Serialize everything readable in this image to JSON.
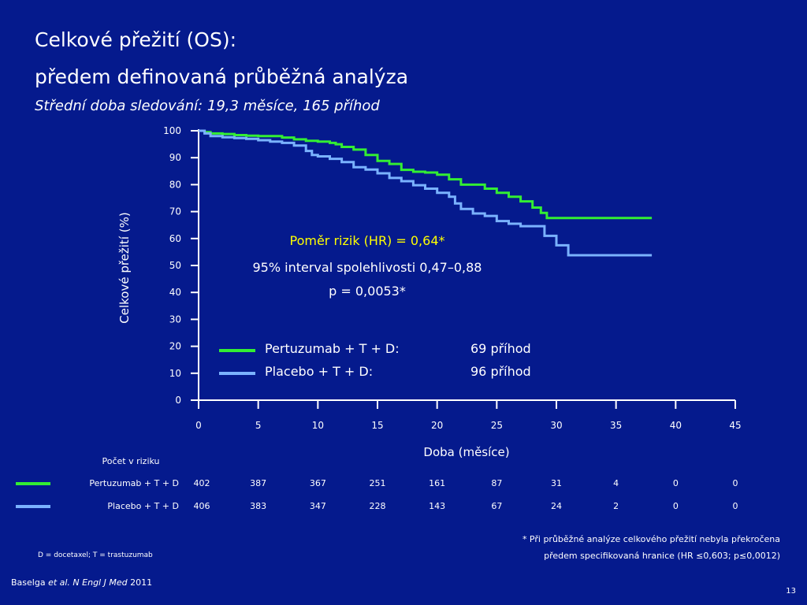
{
  "header": {
    "title_line1": "Celkové přežití (OS):",
    "title_line2": "předem definovaná průběžná analýza",
    "subtitle": "Střední doba sledování: 19,3 měsíce, 165 příhod"
  },
  "colors": {
    "background": "#051a8d",
    "pertuzumab": "#33ee33",
    "placebo": "#7ab2ff",
    "highlight": "#ffff00"
  },
  "annotations": {
    "hr": "Poměr rizik (HR) = 0,64*",
    "ci": "95% interval spolehlivosti 0,47–0,88",
    "p": "p = 0,0053*"
  },
  "legend": [
    {
      "label": "Pertuzumab + T + D:",
      "events": "69 příhod",
      "color": "#33ee33"
    },
    {
      "label": "Placebo + T + D:",
      "events": "96 příhod",
      "color": "#7ab2ff"
    }
  ],
  "chart_data": {
    "type": "line",
    "step": true,
    "xlabel": "Doba (měsíce)",
    "ylabel": "Celkové přežití (%)",
    "xlim": [
      0,
      45
    ],
    "ylim": [
      0,
      100
    ],
    "xticks": [
      "0",
      "5",
      "10",
      "15",
      "20",
      "25",
      "30",
      "35",
      "40",
      "45"
    ],
    "yticks": [
      "0",
      "10",
      "20",
      "30",
      "40",
      "50",
      "60",
      "70",
      "80",
      "90",
      "100"
    ],
    "series": [
      {
        "name": "Pertuzumab + T + D",
        "color": "#33ee33",
        "x": [
          0,
          0.5,
          1,
          2,
          3,
          4,
          5,
          6,
          7,
          8,
          9,
          10,
          11,
          11.5,
          12,
          13,
          14,
          15,
          16,
          17,
          18,
          19,
          20,
          21,
          22,
          23,
          24,
          25,
          26,
          27,
          28,
          28.7,
          29.2,
          35,
          38
        ],
        "y": [
          100,
          99.5,
          99,
          98.8,
          98.4,
          98.2,
          98,
          98,
          97.5,
          96.8,
          96.3,
          96,
          95.5,
          95,
          94,
          93,
          91,
          88.8,
          87.7,
          85.5,
          84.8,
          84.5,
          83.7,
          82,
          80,
          80,
          78.5,
          77,
          75.5,
          73.8,
          71.5,
          69.5,
          67.6,
          67.6,
          67.6
        ]
      },
      {
        "name": "Placebo + T + D",
        "color": "#7ab2ff",
        "x": [
          0,
          0.5,
          1,
          2,
          3,
          4,
          5,
          6,
          7,
          8,
          9,
          9.5,
          10,
          11,
          12,
          13,
          14,
          15,
          16,
          17,
          18,
          19,
          20,
          21,
          21.5,
          22,
          23,
          24,
          25,
          26,
          27,
          28,
          29,
          30,
          31,
          35,
          38
        ],
        "y": [
          100,
          99,
          98,
          97.6,
          97.3,
          97,
          96.5,
          96,
          95.5,
          94.5,
          92.5,
          91,
          90.5,
          89.6,
          88.4,
          86.5,
          85.6,
          84.2,
          82.5,
          81.3,
          79.8,
          78.5,
          77,
          75.5,
          73,
          71,
          69.3,
          68.4,
          66.5,
          65.5,
          64.6,
          64.6,
          61,
          57.5,
          53.8,
          53.8,
          53.8
        ]
      }
    ]
  },
  "risk_table": {
    "title": "Počet v riziku",
    "x_values": [
      0,
      5,
      10,
      15,
      20,
      25,
      30,
      35,
      40,
      45
    ],
    "rows": [
      {
        "label": "Pertuzumab + T + D",
        "color": "#33ee33",
        "values": [
          "402",
          "387",
          "367",
          "251",
          "161",
          "87",
          "31",
          "4",
          "0",
          "0"
        ]
      },
      {
        "label": "Placebo + T + D",
        "color": "#7ab2ff",
        "values": [
          "406",
          "383",
          "347",
          "228",
          "143",
          "67",
          "24",
          "2",
          "0",
          "0"
        ]
      }
    ]
  },
  "footnote": {
    "line1": "* Při průběžné analýze celkového přežití nebyla překročena",
    "line2": "předem specifikovaná hranice  (HR ≤0,603; p≤0,0012)"
  },
  "abbreviations": "D = docetaxel; T = trastuzumab",
  "reference": {
    "author": "Baselga ",
    "etal": "et al. N Engl J Med",
    "year": " 2011"
  },
  "page_number": "13"
}
